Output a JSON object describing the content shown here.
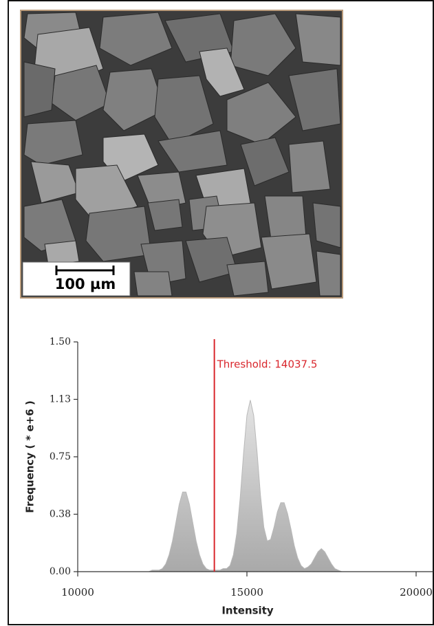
{
  "image": {
    "scale_bar_label": "100 µm"
  },
  "chart_data": {
    "type": "area",
    "x_label": "Intensity",
    "y_label": "Frequency ( * e+6 )",
    "annotation": "Threshold: 14037.5",
    "threshold": 14037.5,
    "threshold_color": "#d9262c",
    "color": "#b8b8b8",
    "xlim": [
      10000,
      20000
    ],
    "ylim": [
      0,
      1.5
    ],
    "xticks": [
      10000,
      15000,
      20000
    ],
    "yticks": [
      {
        "value": 0,
        "label": "0.00"
      },
      {
        "value": 0.375,
        "label": "0.38"
      },
      {
        "value": 0.75,
        "label": "0.75"
      },
      {
        "value": 1.125,
        "label": "1.13"
      },
      {
        "value": 1.5,
        "label": "1.50"
      }
    ],
    "x": [
      12000,
      12100,
      12200,
      12300,
      12400,
      12500,
      12600,
      12700,
      12800,
      12900,
      13000,
      13100,
      13200,
      13300,
      13400,
      13500,
      13600,
      13700,
      13800,
      13900,
      14000,
      14100,
      14200,
      14300,
      14400,
      14500,
      14600,
      14700,
      14800,
      14900,
      15000,
      15100,
      15200,
      15300,
      15400,
      15500,
      15600,
      15700,
      15800,
      15900,
      16000,
      16100,
      16200,
      16300,
      16400,
      16500,
      16600,
      16700,
      16800,
      16900,
      17000,
      17100,
      17200,
      17300,
      17400,
      17500,
      17600,
      17700,
      17800,
      17900,
      18000
    ],
    "values": [
      0,
      0,
      0.01,
      0.01,
      0.01,
      0.02,
      0.05,
      0.11,
      0.2,
      0.32,
      0.44,
      0.52,
      0.52,
      0.44,
      0.32,
      0.2,
      0.11,
      0.05,
      0.02,
      0.01,
      0.01,
      0.01,
      0.01,
      0.02,
      0.02,
      0.04,
      0.11,
      0.25,
      0.48,
      0.77,
      1.02,
      1.12,
      1.02,
      0.78,
      0.5,
      0.29,
      0.2,
      0.21,
      0.29,
      0.39,
      0.45,
      0.45,
      0.38,
      0.28,
      0.17,
      0.09,
      0.04,
      0.02,
      0.03,
      0.05,
      0.09,
      0.13,
      0.15,
      0.13,
      0.09,
      0.05,
      0.02,
      0.01,
      0,
      0,
      0
    ]
  }
}
